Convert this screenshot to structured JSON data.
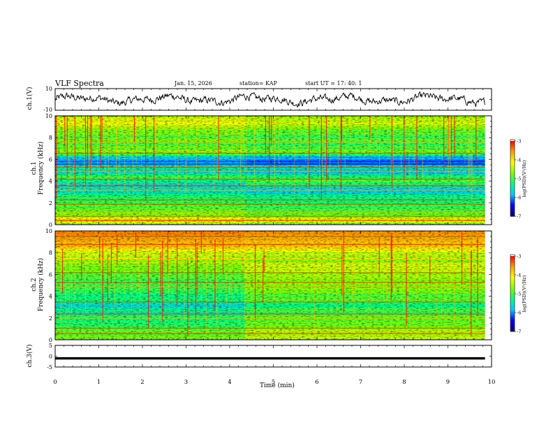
{
  "header": {
    "title": "VLF Spectra",
    "date": "Jan. 15, 2026",
    "station": "station= KAP",
    "start": "start  UT =   17: 40: 1"
  },
  "colors": {
    "colormap": [
      "#000080",
      "#0000ff",
      "#00c8ff",
      "#00ff80",
      "#80ff00",
      "#ffff00",
      "#ffa000",
      "#ff0000",
      "#ffffff"
    ]
  },
  "chart_data": [
    {
      "type": "line",
      "name": "ch1-waveform",
      "ylabel": "ch.1(V)",
      "ylim": [
        -10,
        10
      ],
      "yticks": [
        "10",
        "-10"
      ],
      "xlim": [
        0,
        10
      ],
      "waveform": "noise centered near 0 V, amplitude about ±5 V"
    },
    {
      "type": "heatmap",
      "name": "ch1-spectrogram",
      "ylabel_line1": "ch.1",
      "ylabel_line2": "Frequency (kHz)",
      "ylim": [
        0,
        10
      ],
      "yticks": [
        "0",
        "2",
        "4",
        "6",
        "8",
        "10"
      ],
      "xlim": [
        0,
        9.85
      ],
      "colorbar": {
        "label": "log(PSD)(V²/Hz)",
        "range": [
          -7,
          -3
        ],
        "ticks": [
          "-3",
          "-4",
          "-5",
          "-6",
          "-7"
        ]
      },
      "level_profile": [
        [
          0.0,
          -4.9
        ],
        [
          0.4,
          -3.6
        ],
        [
          0.8,
          -4.6
        ],
        [
          1.2,
          -4.8
        ],
        [
          2.0,
          -4.9
        ],
        [
          2.4,
          -5.1
        ],
        [
          3.2,
          -5.6
        ],
        [
          3.8,
          -5.5
        ],
        [
          4.4,
          -5.1
        ],
        [
          4.8,
          -5.6
        ],
        [
          5.4,
          -5.3
        ],
        [
          5.6,
          -6.1
        ],
        [
          6.2,
          -5.7
        ],
        [
          6.6,
          -4.7
        ],
        [
          7.5,
          -4.9
        ],
        [
          8.8,
          -4.7
        ],
        [
          9.4,
          -4.2
        ],
        [
          10.0,
          -4.3
        ]
      ],
      "change_time_min": 4.35
    },
    {
      "type": "heatmap",
      "name": "ch2-spectrogram",
      "ylabel_line1": "ch.2",
      "ylabel_line2": "Frequency (kHz)",
      "ylim": [
        0,
        10
      ],
      "yticks": [
        "0",
        "2",
        "4",
        "6",
        "8",
        "10"
      ],
      "xlim": [
        0,
        9.85
      ],
      "colorbar": {
        "label": "log(PSD)(V²/Hz)",
        "range": [
          -7,
          -3
        ],
        "ticks": [
          "-3",
          "-4",
          "-5",
          "-6",
          "-7"
        ]
      },
      "level_profile": [
        [
          0.0,
          -4.9
        ],
        [
          0.5,
          -4.7
        ],
        [
          1.0,
          -5.1
        ],
        [
          1.6,
          -5.0
        ],
        [
          2.4,
          -5.3
        ],
        [
          3.0,
          -5.6
        ],
        [
          4.0,
          -5.2
        ],
        [
          5.0,
          -5.0
        ],
        [
          6.0,
          -4.9
        ],
        [
          7.0,
          -4.6
        ],
        [
          8.0,
          -4.3
        ],
        [
          8.8,
          -3.7
        ],
        [
          10.0,
          -3.5
        ]
      ],
      "change_time_min": 4.35
    },
    {
      "type": "line",
      "name": "ch3-waveform",
      "ylabel": "ch.3(V)",
      "ylim": [
        -5,
        5
      ],
      "yticks": [
        "5",
        "0",
        "-5"
      ],
      "xlim": [
        0,
        10
      ],
      "level_v": -1.0,
      "thickness_v": 1.1
    }
  ],
  "xaxis": {
    "label": "Time (min)",
    "ticks": [
      "0",
      "1",
      "2",
      "3",
      "4",
      "5",
      "6",
      "7",
      "8",
      "9",
      "10"
    ],
    "range": [
      0,
      10
    ]
  }
}
